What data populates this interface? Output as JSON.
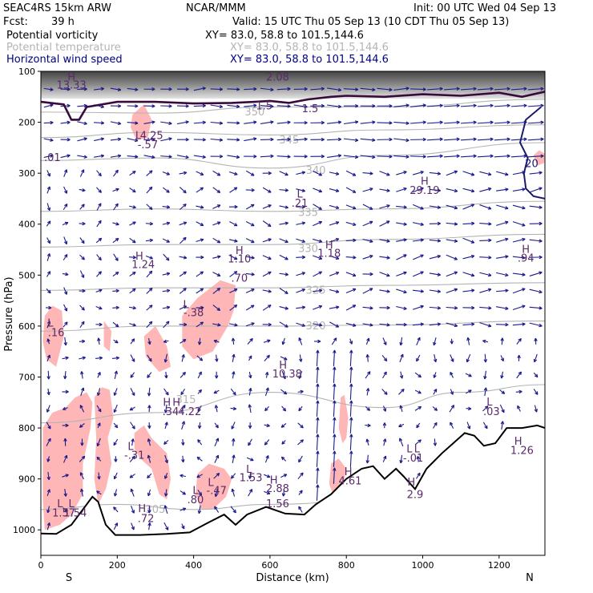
{
  "header": {
    "model": "SEAC4RS 15km ARW",
    "center": "NCAR/MMM",
    "init": "Init: 00 UTC Wed 04 Sep 13",
    "fcst_label": "Fcst:",
    "fcst_value": "39 h",
    "valid": "Valid: 15 UTC Thu 05 Sep 13 (10 CDT Thu 05 Sep 13)"
  },
  "fields": [
    {
      "name": "Potential vorticity",
      "xy": "XY=  83.0, 58.8 to 101.5,144.6",
      "color": "#000000"
    },
    {
      "name": "Potential temperature",
      "xy": "XY=  83.0, 58.8 to 101.5,144.6",
      "color": "#b4b4b4"
    },
    {
      "name": "Horizontal wind speed",
      "xy": "XY=  83.0, 58.8 to 101.5,144.6",
      "color": "#000080"
    }
  ],
  "colors": {
    "pv_fill": "#ffb6b6",
    "theta": "#b4b4b4",
    "wind": "#1a1a8c",
    "tropopause": "#3a0a3a",
    "speed_contour": "#1a1a6e",
    "label": "#5a2a6a",
    "terrain": "#000000"
  },
  "chart_data": {
    "type": "cross-section",
    "xlabel": "Distance (km)",
    "ylabel": "Pressure (hPa)",
    "xlim": [
      0,
      1320
    ],
    "ylim": [
      1050,
      100
    ],
    "xticks": [
      0,
      200,
      400,
      600,
      800,
      1000,
      1200
    ],
    "yticks": [
      100,
      200,
      300,
      400,
      500,
      600,
      700,
      800,
      900,
      1000
    ],
    "endpoints": {
      "left": "S",
      "right": "N"
    },
    "terrain": [
      [
        0,
        1007
      ],
      [
        40,
        1008
      ],
      [
        80,
        990
      ],
      [
        110,
        960
      ],
      [
        135,
        935
      ],
      [
        150,
        945
      ],
      [
        170,
        990
      ],
      [
        195,
        1010
      ],
      [
        260,
        1010
      ],
      [
        330,
        1008
      ],
      [
        390,
        1005
      ],
      [
        440,
        985
      ],
      [
        480,
        970
      ],
      [
        510,
        990
      ],
      [
        540,
        970
      ],
      [
        590,
        955
      ],
      [
        640,
        968
      ],
      [
        690,
        970
      ],
      [
        720,
        950
      ],
      [
        760,
        930
      ],
      [
        800,
        900
      ],
      [
        840,
        880
      ],
      [
        870,
        875
      ],
      [
        900,
        900
      ],
      [
        930,
        880
      ],
      [
        950,
        895
      ],
      [
        980,
        920
      ],
      [
        1010,
        880
      ],
      [
        1050,
        850
      ],
      [
        1080,
        830
      ],
      [
        1110,
        810
      ],
      [
        1135,
        815
      ],
      [
        1160,
        835
      ],
      [
        1190,
        830
      ],
      [
        1220,
        800
      ],
      [
        1260,
        800
      ],
      [
        1300,
        795
      ],
      [
        1320,
        800
      ]
    ],
    "tropopause": [
      [
        0,
        160
      ],
      [
        60,
        165
      ],
      [
        80,
        195
      ],
      [
        100,
        195
      ],
      [
        120,
        170
      ],
      [
        200,
        160
      ],
      [
        300,
        160
      ],
      [
        400,
        163
      ],
      [
        500,
        162
      ],
      [
        560,
        160
      ],
      [
        600,
        158
      ],
      [
        650,
        162
      ],
      [
        700,
        155
      ],
      [
        760,
        150
      ],
      [
        800,
        148
      ],
      [
        900,
        150
      ],
      [
        1000,
        145
      ],
      [
        1100,
        148
      ],
      [
        1200,
        142
      ],
      [
        1260,
        150
      ],
      [
        1320,
        140
      ]
    ],
    "theta_levels": [
      {
        "label": "350",
        "points": [
          [
            0,
            180
          ],
          [
            300,
            182
          ],
          [
            600,
            170
          ],
          [
            900,
            170
          ],
          [
            1320,
            155
          ]
        ],
        "label_at": [
          560,
          180
        ]
      },
      {
        "label": "345",
        "points": [
          [
            0,
            230
          ],
          [
            300,
            220
          ],
          [
            600,
            225
          ],
          [
            900,
            215
          ],
          [
            1320,
            205
          ]
        ],
        "label_at": [
          650,
          235
        ]
      },
      {
        "label": "340",
        "points": [
          [
            0,
            275
          ],
          [
            300,
            270
          ],
          [
            600,
            290
          ],
          [
            900,
            265
          ],
          [
            1320,
            240
          ]
        ],
        "label_at": [
          720,
          295
        ]
      },
      {
        "label": "335",
        "points": [
          [
            0,
            375
          ],
          [
            300,
            370
          ],
          [
            600,
            375
          ],
          [
            900,
            370
          ],
          [
            1320,
            355
          ]
        ],
        "label_at": [
          700,
          378
        ]
      },
      {
        "label": "330",
        "points": [
          [
            0,
            445
          ],
          [
            300,
            440
          ],
          [
            600,
            440
          ],
          [
            900,
            430
          ],
          [
            1320,
            420
          ]
        ],
        "label_at": [
          700,
          448
        ]
      },
      {
        "label": "325",
        "points": [
          [
            0,
            530
          ],
          [
            300,
            525
          ],
          [
            600,
            525
          ],
          [
            900,
            520
          ],
          [
            1320,
            515
          ]
        ],
        "label_at": [
          720,
          530
        ]
      },
      {
        "label": "320",
        "points": [
          [
            0,
            610
          ],
          [
            300,
            600
          ],
          [
            600,
            600
          ],
          [
            900,
            598
          ],
          [
            1320,
            590
          ]
        ],
        "label_at": [
          720,
          600
        ]
      },
      {
        "label": "315",
        "points": [
          [
            0,
            790
          ],
          [
            300,
            770
          ],
          [
            600,
            730
          ],
          [
            900,
            760
          ],
          [
            1100,
            730
          ],
          [
            1320,
            715
          ]
        ],
        "label_at": [
          380,
          745
        ]
      },
      {
        "label": "305",
        "points": [
          [
            0,
            960
          ],
          [
            200,
            950
          ],
          [
            400,
            960
          ],
          [
            600,
            950
          ],
          [
            900,
            940
          ],
          [
            1320,
            925
          ]
        ],
        "label_at": [
          300,
          960
        ]
      }
    ],
    "pv_regions": [
      {
        "value": ">1.0",
        "points": [
          [
            240,
            185
          ],
          [
            270,
            165
          ],
          [
            290,
            195
          ],
          [
            280,
            230
          ],
          [
            250,
            235
          ],
          [
            235,
            210
          ]
        ]
      },
      {
        "value": ">1.0",
        "points": [
          [
            10,
            580
          ],
          [
            30,
            560
          ],
          [
            55,
            570
          ],
          [
            60,
            620
          ],
          [
            40,
            680
          ],
          [
            15,
            665
          ],
          [
            5,
            630
          ]
        ]
      },
      {
        "value": ">1.0",
        "points": [
          [
            370,
            580
          ],
          [
            410,
            545
          ],
          [
            470,
            510
          ],
          [
            510,
            520
          ],
          [
            505,
            570
          ],
          [
            490,
            600
          ],
          [
            450,
            650
          ],
          [
            400,
            665
          ],
          [
            370,
            640
          ]
        ]
      },
      {
        "value": ">1.0",
        "points": [
          [
            270,
            620
          ],
          [
            300,
            600
          ],
          [
            330,
            640
          ],
          [
            340,
            680
          ],
          [
            310,
            690
          ],
          [
            275,
            660
          ]
        ]
      },
      {
        "value": ">1.0",
        "points": [
          [
            165,
            590
          ],
          [
            185,
            610
          ],
          [
            180,
            650
          ],
          [
            165,
            640
          ]
        ]
      },
      {
        "value": ">1.0",
        "points": [
          [
            5,
            800
          ],
          [
            30,
            770
          ],
          [
            65,
            760
          ],
          [
            90,
            740
          ],
          [
            120,
            730
          ],
          [
            135,
            750
          ],
          [
            130,
            800
          ],
          [
            110,
            870
          ],
          [
            110,
            930
          ],
          [
            80,
            970
          ],
          [
            50,
            990
          ],
          [
            10,
            1000
          ],
          [
            5,
            940
          ]
        ]
      },
      {
        "value": ">1.0",
        "points": [
          [
            140,
            740
          ],
          [
            160,
            720
          ],
          [
            180,
            725
          ],
          [
            190,
            780
          ],
          [
            175,
            820
          ],
          [
            185,
            870
          ],
          [
            170,
            920
          ],
          [
            150,
            950
          ],
          [
            140,
            900
          ],
          [
            145,
            820
          ]
        ]
      },
      {
        "value": ">1.0",
        "points": [
          [
            245,
            810
          ],
          [
            270,
            795
          ],
          [
            290,
            820
          ],
          [
            330,
            850
          ],
          [
            340,
            900
          ],
          [
            330,
            940
          ],
          [
            310,
            930
          ],
          [
            290,
            880
          ],
          [
            260,
            860
          ],
          [
            245,
            840
          ]
        ]
      },
      {
        "value": ">1.0",
        "points": [
          [
            410,
            890
          ],
          [
            440,
            870
          ],
          [
            480,
            880
          ],
          [
            500,
            900
          ],
          [
            485,
            935
          ],
          [
            450,
            960
          ],
          [
            420,
            960
          ],
          [
            405,
            930
          ]
        ]
      },
      {
        "value": ">1.0",
        "points": [
          [
            785,
            740
          ],
          [
            795,
            735
          ],
          [
            805,
            780
          ],
          [
            800,
            820
          ],
          [
            790,
            830
          ],
          [
            780,
            800
          ]
        ]
      },
      {
        "value": ">1.0",
        "points": [
          [
            760,
            870
          ],
          [
            780,
            860
          ],
          [
            800,
            880
          ],
          [
            790,
            920
          ],
          [
            770,
            940
          ],
          [
            755,
            910
          ]
        ]
      },
      {
        "value": ">1.0",
        "points": [
          [
            1290,
            265
          ],
          [
            1305,
            255
          ],
          [
            1320,
            262
          ],
          [
            1318,
            280
          ],
          [
            1300,
            285
          ]
        ]
      }
    ],
    "speed_contours": [
      {
        "label": "20",
        "points": [
          [
            1310,
            170
          ],
          [
            1270,
            195
          ],
          [
            1255,
            240
          ],
          [
            1275,
            270
          ],
          [
            1265,
            300
          ],
          [
            1270,
            330
          ],
          [
            1290,
            345
          ],
          [
            1320,
            350
          ]
        ],
        "label_at": [
          1268,
          280
        ]
      }
    ],
    "annotations": [
      {
        "text": "H",
        "x": 80,
        "y": 110
      },
      {
        "text": "13.33",
        "x": 80,
        "y": 126
      },
      {
        "text": "2.08",
        "x": 620,
        "y": 110
      },
      {
        "text": "1.5",
        "x": 585,
        "y": 167
      },
      {
        "text": "1.5",
        "x": 705,
        "y": 172
      },
      {
        "text": "L",
        "x": 255,
        "y": 225
      },
      {
        "text": "4.25",
        "x": 290,
        "y": 225
      },
      {
        "text": "-.57",
        "x": 280,
        "y": 243
      },
      {
        "text": ".01",
        "x": 30,
        "y": 268
      },
      {
        "text": "H",
        "x": 1005,
        "y": 315
      },
      {
        "text": "29.19",
        "x": 1005,
        "y": 333
      },
      {
        "text": "L",
        "x": 678,
        "y": 340
      },
      {
        "text": ".21",
        "x": 678,
        "y": 358
      },
      {
        "text": "H",
        "x": 258,
        "y": 462
      },
      {
        "text": "1.24",
        "x": 268,
        "y": 478
      },
      {
        "text": "H",
        "x": 520,
        "y": 451
      },
      {
        "text": "1.10",
        "x": 520,
        "y": 467
      },
      {
        "text": ".70",
        "x": 520,
        "y": 505
      },
      {
        "text": "H",
        "x": 755,
        "y": 440
      },
      {
        "text": "1.18",
        "x": 755,
        "y": 456
      },
      {
        "text": "H",
        "x": 1270,
        "y": 448
      },
      {
        "text": ".94",
        "x": 1270,
        "y": 466
      },
      {
        "text": "L",
        "x": 380,
        "y": 557
      },
      {
        "text": "-.38",
        "x": 400,
        "y": 573
      },
      {
        "text": "L",
        "x": 25,
        "y": 593
      },
      {
        "text": ".16",
        "x": 40,
        "y": 612
      },
      {
        "text": "H",
        "x": 634,
        "y": 676
      },
      {
        "text": "10.38",
        "x": 645,
        "y": 693
      },
      {
        "text": "H",
        "x": 330,
        "y": 749
      },
      {
        "text": "H",
        "x": 355,
        "y": 749
      },
      {
        "text": ".34",
        "x": 340,
        "y": 767
      },
      {
        "text": "4.22",
        "x": 390,
        "y": 767
      },
      {
        "text": "L",
        "x": 1175,
        "y": 748
      },
      {
        "text": ".03",
        "x": 1180,
        "y": 767
      },
      {
        "text": "L",
        "x": 235,
        "y": 835
      },
      {
        "text": "-.31",
        "x": 245,
        "y": 853
      },
      {
        "text": "L",
        "x": 965,
        "y": 840
      },
      {
        "text": "L",
        "x": 985,
        "y": 840
      },
      {
        "text": "-.01",
        "x": 975,
        "y": 858
      },
      {
        "text": "H",
        "x": 1250,
        "y": 825
      },
      {
        "text": "1.26",
        "x": 1260,
        "y": 843
      },
      {
        "text": "L",
        "x": 545,
        "y": 880
      },
      {
        "text": "1.53",
        "x": 550,
        "y": 897
      },
      {
        "text": "H",
        "x": 805,
        "y": 885
      },
      {
        "text": "4.61",
        "x": 810,
        "y": 903
      },
      {
        "text": "L",
        "x": 445,
        "y": 906
      },
      {
        "text": "-.47",
        "x": 460,
        "y": 922
      },
      {
        "text": "L",
        "x": 405,
        "y": 922
      },
      {
        "text": ".80",
        "x": 405,
        "y": 940
      },
      {
        "text": "H",
        "x": 610,
        "y": 901
      },
      {
        "text": "2.88",
        "x": 620,
        "y": 918
      },
      {
        "text": "H",
        "x": 970,
        "y": 905
      },
      {
        "text": "2.9",
        "x": 980,
        "y": 930
      },
      {
        "text": "1.56",
        "x": 620,
        "y": 948
      },
      {
        "text": "L",
        "x": 50,
        "y": 948
      },
      {
        "text": "L",
        "x": 80,
        "y": 948
      },
      {
        "text": "1.57",
        "x": 60,
        "y": 966
      },
      {
        "text": "1.54",
        "x": 90,
        "y": 966
      },
      {
        "text": "H",
        "x": 265,
        "y": 957
      },
      {
        "text": ".72",
        "x": 275,
        "y": 977
      }
    ],
    "wind_arrows": {
      "x_spacing_km": 44,
      "p_spacing_hpa": 33
    }
  }
}
